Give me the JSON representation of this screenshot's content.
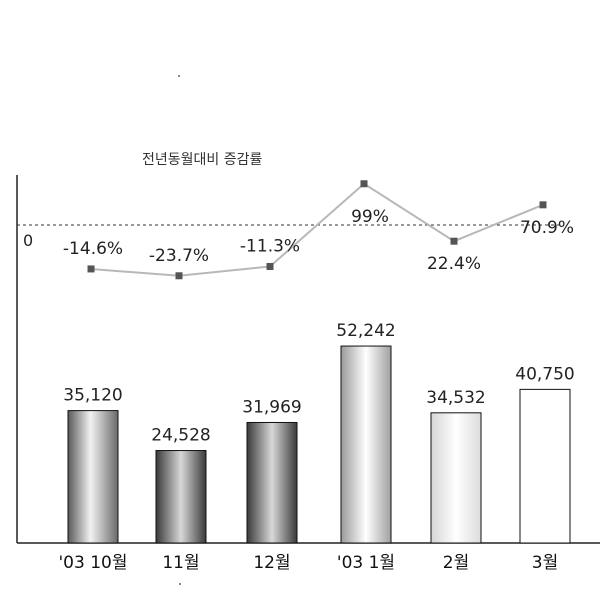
{
  "chart_data": {
    "type": "bar",
    "categories": [
      "'03 10월",
      "11월",
      "12월",
      "'03 1월",
      "2월",
      "3월"
    ],
    "bars": {
      "values": [
        35120,
        24528,
        31969,
        52242,
        34532,
        40750
      ],
      "labels": [
        "35,120",
        "24,528",
        "31,969",
        "52,242",
        "34,532",
        "40,750"
      ],
      "styles": [
        "gray-gradient",
        "dark-gradient",
        "dark-gradient",
        "light-gradient",
        "white-gradient",
        "white"
      ]
    },
    "line": {
      "name": "전년동월대비 증감률",
      "values": [
        -14.6,
        -23.7,
        -11.3,
        99,
        22.4,
        70.9
      ],
      "labels": [
        "-14.6%",
        "-23.7%",
        "-11.3%",
        "99%",
        "22.4%",
        "70.9%"
      ],
      "zero_label": "0"
    },
    "colors": {
      "line": "#b8b8b8",
      "marker": "#555555",
      "axis": "#222222",
      "zero_line": "#333333"
    }
  }
}
